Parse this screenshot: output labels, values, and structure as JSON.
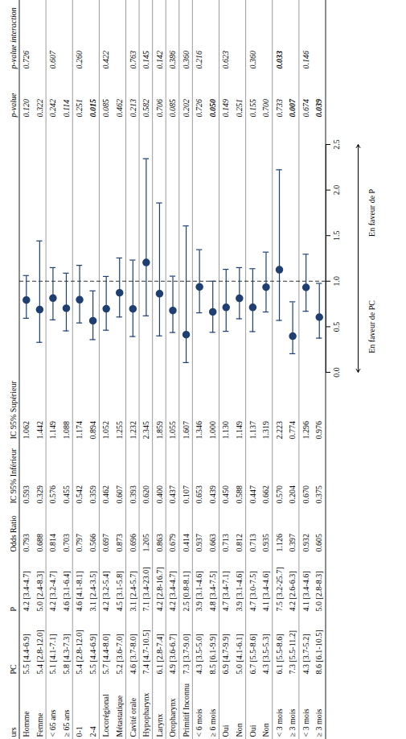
{
  "chart_data": {
    "type": "forest",
    "columns": [
      "urs",
      "PC",
      "P",
      "Odds Ratio",
      "IC 95% Inférieur",
      "IC 95% Supérieur",
      "p-value",
      "p-value interaction"
    ],
    "categories": [
      "Homme",
      "Femme",
      "< 65 ans",
      "≥ 65 ans",
      "0-1",
      "2-4",
      "Locorégional",
      "Métastatique",
      "Cavité orale",
      "Hypopharynx",
      "Larynx",
      "Oropharynx",
      "Primitif Inconnu",
      "< 6 mois",
      "≥ 6 mois",
      "Oui",
      "Non",
      "Oui",
      "Non",
      "< 3 mois",
      "≥ 3 mois",
      "< 3 mois",
      "≥ 3 mois"
    ],
    "pc": [
      "5.5 [4.4-6.9]",
      "5.4 [2.8-12.0]",
      "5.1 [4.1-7.1]",
      "5.8 [4.3-7.3]",
      "5.4 [2.8-12.0]",
      "5.5 [4.4-6.9]",
      "5.7 [4.4-8.0]",
      "5.2 [3.6-7.0]",
      "4.6 [3.7-8.0]",
      "7.4 [4.7-10.5]",
      "6.1 [2.8-7.4]",
      "4.9 [3.6-6.7]",
      "7.3 [3.7-9.0]",
      "4.3 [3.5-5.0]",
      "8.5 [6.1-9.9]",
      "6.9 [4.7-9.9]",
      "5.0 [4.1-6.1]",
      "6.7 [5.5-8.6]",
      "4.3 [3.5-5.3]",
      "6.1 [5.5-8.6]",
      "7.3 [5.5-11.2]",
      "4.3 [3.7-5.2]",
      "8.6 [6.1-10.5]"
    ],
    "p": [
      "4.2 [3.4-4.7]",
      "5.0 [2.4-8.3]",
      "4.2 [3.2-4.7]",
      "4.6 [3.1-6.4]",
      "4.6 [4.1-8.1]",
      "3.1 [2.4-3.5]",
      "4.2 [3.2-5.4]",
      "4.5 [3.1-5.8]",
      "3.1 [2.4-5.7]",
      "7.1 [3.4-23.0]",
      "4.2 [2.8-16.7]",
      "4.2 [3.4-4.7]",
      "2.5 [0.8-8.1]",
      "3.9 [3.1-4.6]",
      "4.8 [3.4-7.5]",
      "4.7 [3.4-7.1]",
      "3.9 [3.1-4.6]",
      "4.7 [3.0-7.5]",
      "4.1 [3.4-4.6]",
      "7.5 [3.2-25.7]",
      "4.2 [2.6-6.3]",
      "4.1 [3.4-4.6]",
      "5.0 [2.8-8.3]"
    ],
    "values": [
      0.793,
      0.688,
      0.814,
      0.703,
      0.797,
      0.566,
      0.697,
      0.873,
      0.696,
      1.205,
      0.863,
      0.679,
      0.414,
      0.937,
      0.663,
      0.713,
      0.812,
      0.713,
      0.935,
      1.126,
      0.397,
      0.932,
      0.605
    ],
    "value_labels": [
      "0.793",
      "0.688",
      "0.814",
      "0.703",
      "0.797",
      "0.566",
      "0.697",
      "0.873",
      "0.696",
      "1.205",
      "0.863",
      "0.679",
      "0.414",
      "0.937",
      "0.663",
      "0.713",
      "0.812",
      "0.713",
      "0.935",
      "1.126",
      "0.397",
      "0.932",
      "0.605"
    ],
    "ci_lower": [
      0.593,
      0.329,
      0.576,
      0.455,
      0.542,
      0.359,
      0.462,
      0.607,
      0.393,
      0.62,
      0.4,
      0.437,
      0.107,
      0.653,
      0.439,
      0.45,
      0.588,
      0.447,
      0.662,
      0.57,
      0.204,
      0.67,
      0.375
    ],
    "ci_lower_labels": [
      "0.593",
      "0.329",
      "0.576",
      "0.455",
      "0.542",
      "0.359",
      "0.462",
      "0.607",
      "0.393",
      "0.620",
      "0.400",
      "0.437",
      "0.107",
      "0.653",
      "0.439",
      "0.450",
      "0.588",
      "0.447",
      "0.662",
      "0.570",
      "0.204",
      "0.670",
      "0.375"
    ],
    "ci_upper": [
      1.062,
      1.442,
      1.149,
      1.088,
      1.174,
      0.894,
      1.052,
      1.255,
      1.232,
      2.345,
      1.859,
      1.055,
      1.607,
      1.346,
      1.0,
      1.13,
      1.149,
      1.137,
      1.319,
      2.223,
      0.774,
      1.296,
      0.976
    ],
    "ci_upper_labels": [
      "1.062",
      "1.442",
      "1.149",
      "1.088",
      "1.174",
      "0.894",
      "1.052",
      "1.255",
      "1.232",
      "2.345",
      "1.859",
      "1.055",
      "1.607",
      "1.346",
      "1.000",
      "1.130",
      "1.149",
      "1.137",
      "1.319",
      "2.223",
      "0.774",
      "1.296",
      "0.976"
    ],
    "p_values": [
      "0.120",
      "0.322",
      "0.242",
      "0.114",
      "0.251",
      "0.015",
      "0.085",
      "0.462",
      "0.213",
      "0.582",
      "0.706",
      "0.085",
      "0.202",
      "0.726",
      "0.050",
      "0.149",
      "0.251",
      "0.155",
      "0.700",
      "0.733",
      "0.007",
      "0.674",
      "0.039"
    ],
    "p_interaction": [
      "0.726",
      null,
      "0.607",
      null,
      "0.260",
      null,
      "0.422",
      null,
      "0.763",
      "0.145",
      "0.142",
      "0.386",
      "0.360",
      "0.216",
      null,
      "0.623",
      null,
      "0.360",
      null,
      "0.033",
      null,
      "0.146",
      null
    ],
    "color": "#1f3f73",
    "xlim": [
      0,
      2.5
    ],
    "xticks": [
      {
        "value": 0,
        "label": "0.0"
      },
      {
        "value": 0.5,
        "label": "0.5"
      },
      {
        "value": 1,
        "label": "1.0"
      },
      {
        "value": 1.5,
        "label": "1.5"
      },
      {
        "value": 2,
        "label": "2.0"
      },
      {
        "value": 2.5,
        "label": "2.5"
      }
    ],
    "reference": 1,
    "annotations": [
      "En faveur de PC",
      "En faveur de P"
    ]
  }
}
